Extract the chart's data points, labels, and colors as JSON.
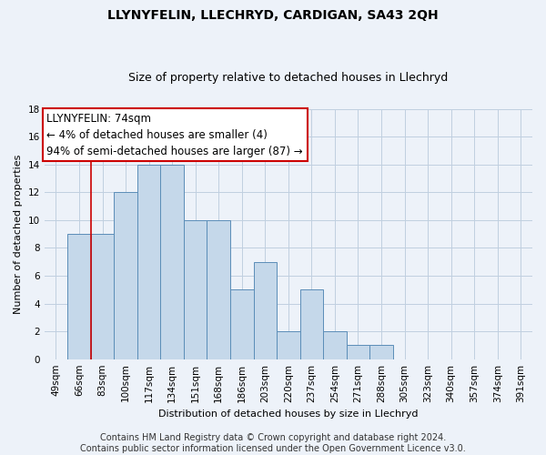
{
  "title": "LLYNYFELIN, LLECHRYD, CARDIGAN, SA43 2QH",
  "subtitle": "Size of property relative to detached houses in Llechryd",
  "xlabel": "Distribution of detached houses by size in Llechryd",
  "ylabel": "Number of detached properties",
  "categories": [
    "49sqm",
    "66sqm",
    "83sqm",
    "100sqm",
    "117sqm",
    "134sqm",
    "151sqm",
    "168sqm",
    "186sqm",
    "203sqm",
    "220sqm",
    "237sqm",
    "254sqm",
    "271sqm",
    "288sqm",
    "305sqm",
    "323sqm",
    "340sqm",
    "357sqm",
    "374sqm",
    "391sqm"
  ],
  "values": [
    0,
    9,
    9,
    12,
    14,
    14,
    10,
    10,
    5,
    7,
    2,
    5,
    2,
    1,
    1,
    0,
    0,
    0,
    0,
    0,
    0
  ],
  "bar_color": "#c5d8ea",
  "bar_edge_color": "#5b8db8",
  "ylim": [
    0,
    18
  ],
  "yticks": [
    0,
    2,
    4,
    6,
    8,
    10,
    12,
    14,
    16,
    18
  ],
  "annotation_box_text": "LLYNYFELIN: 74sqm\n← 4% of detached houses are smaller (4)\n94% of semi-detached houses are larger (87) →",
  "annotation_box_color": "#ffffff",
  "annotation_box_edge_color": "#cc0000",
  "vline_color": "#cc0000",
  "vline_x": 1.5,
  "footer": "Contains HM Land Registry data © Crown copyright and database right 2024.\nContains public sector information licensed under the Open Government Licence v3.0.",
  "grid_color": "#c0cfe0",
  "background_color": "#edf2f9",
  "title_fontsize": 10,
  "subtitle_fontsize": 9,
  "annotation_fontsize": 8.5,
  "axis_label_fontsize": 8,
  "tick_fontsize": 7.5,
  "footer_fontsize": 7
}
